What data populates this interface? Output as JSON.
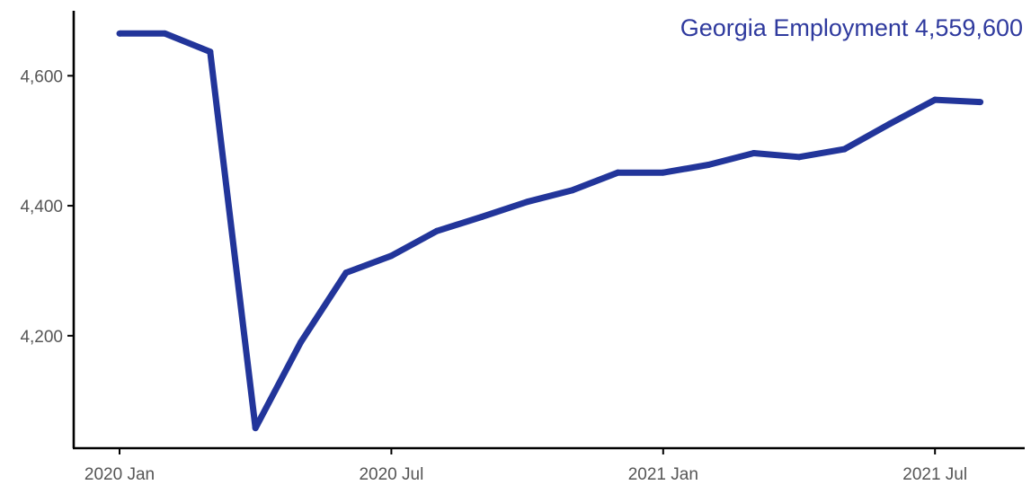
{
  "chart_data": {
    "type": "line",
    "title": "Georgia Employment 4,559,600",
    "xlabel": "",
    "ylabel": "",
    "x": [
      "2020-01",
      "2020-02",
      "2020-03",
      "2020-04",
      "2020-05",
      "2020-06",
      "2020-07",
      "2020-08",
      "2020-09",
      "2020-10",
      "2020-11",
      "2020-12",
      "2021-01",
      "2021-02",
      "2021-03",
      "2021-04",
      "2021-05",
      "2021-06",
      "2021-07",
      "2021-08"
    ],
    "series": [
      {
        "values": [
          4665,
          4665,
          4637,
          4058,
          4190,
          4297,
          4323,
          4361,
          4383,
          4406,
          4424,
          4451,
          4451,
          4463,
          4481,
          4475,
          4487,
          4526,
          4563,
          4559.6
        ]
      }
    ],
    "x_ticks": [
      {
        "label": "2020 Jan",
        "x": "2020-01"
      },
      {
        "label": "2020 Jul",
        "x": "2020-07"
      },
      {
        "label": "2021 Jan",
        "x": "2021-01"
      },
      {
        "label": "2021 Jul",
        "x": "2021-07"
      }
    ],
    "y_ticks": [
      {
        "label": "4,200",
        "value": 4200
      },
      {
        "label": "4,400",
        "value": 4400
      },
      {
        "label": "4,600",
        "value": 4600
      }
    ],
    "ylim": [
      4027,
      4700
    ],
    "grid": false,
    "line_color": "#22359a",
    "title_color": "#2f3a9e"
  }
}
